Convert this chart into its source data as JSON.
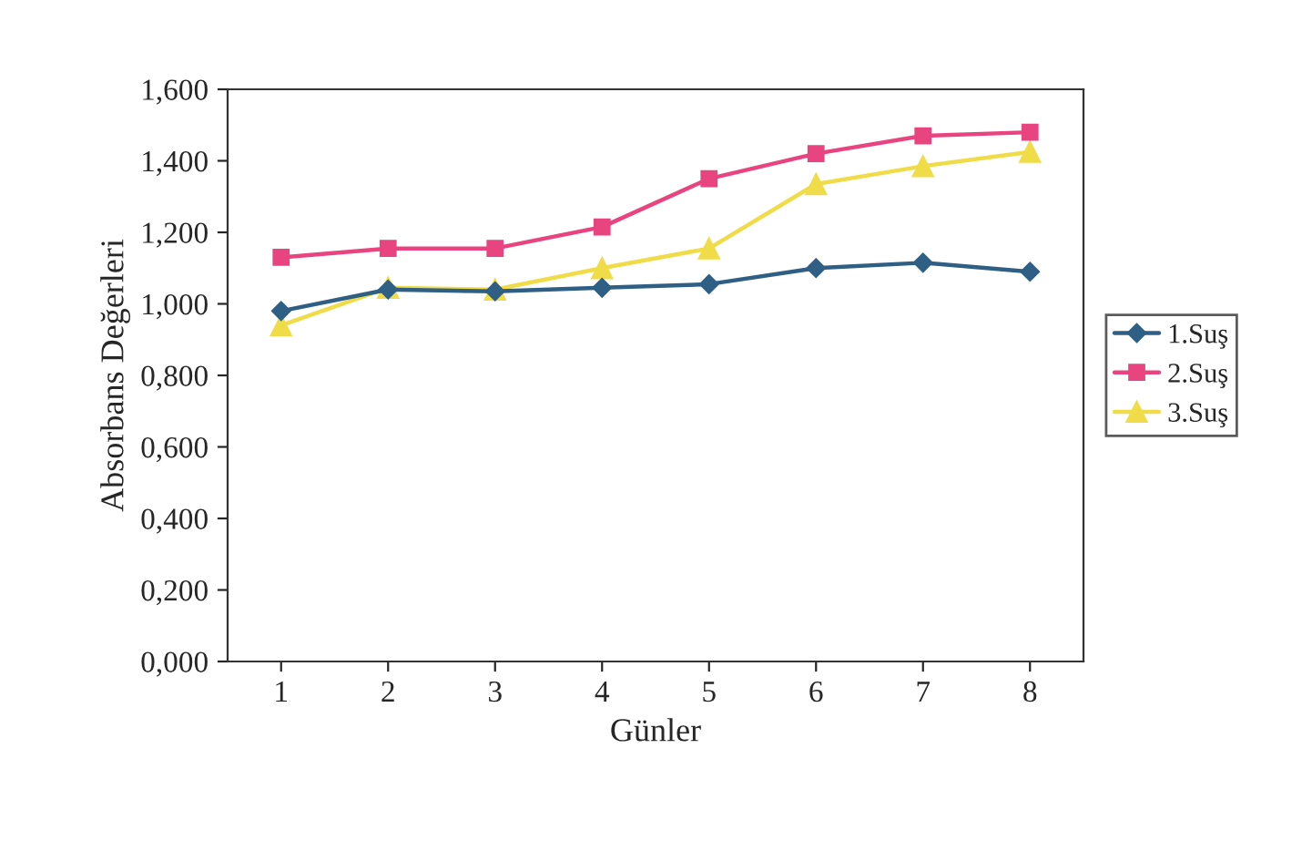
{
  "chart_data": {
    "type": "line",
    "xlabel": "Günler",
    "ylabel": "Absorbans Değerleri",
    "categories": [
      "1",
      "2",
      "3",
      "4",
      "5",
      "6",
      "7",
      "8"
    ],
    "series": [
      {
        "name": "1.Suş",
        "color": "#2f5f85",
        "marker": "diamond",
        "values": [
          0.98,
          1.04,
          1.035,
          1.045,
          1.055,
          1.1,
          1.115,
          1.09
        ]
      },
      {
        "name": "2.Suş",
        "color": "#e8447f",
        "marker": "square",
        "values": [
          1.13,
          1.155,
          1.155,
          1.215,
          1.35,
          1.42,
          1.47,
          1.48
        ]
      },
      {
        "name": "3.Suş",
        "color": "#f0dc48",
        "marker": "triangle",
        "values": [
          0.94,
          1.045,
          1.04,
          1.1,
          1.155,
          1.335,
          1.385,
          1.425
        ]
      }
    ],
    "ylim": [
      0,
      1.6
    ],
    "yticks": [
      {
        "value": 0,
        "label": "0,000"
      },
      {
        "value": 0.2,
        "label": "0,200"
      },
      {
        "value": 0.4,
        "label": "0,400"
      },
      {
        "value": 0.6,
        "label": "0,600"
      },
      {
        "value": 0.8,
        "label": "0,800"
      },
      {
        "value": 1.0,
        "label": "1,000"
      },
      {
        "value": 1.2,
        "label": "1,200"
      },
      {
        "value": 1.4,
        "label": "1,400"
      },
      {
        "value": 1.6,
        "label": "1,600"
      }
    ],
    "grid": false,
    "legend": "right",
    "line_style": "solid"
  }
}
